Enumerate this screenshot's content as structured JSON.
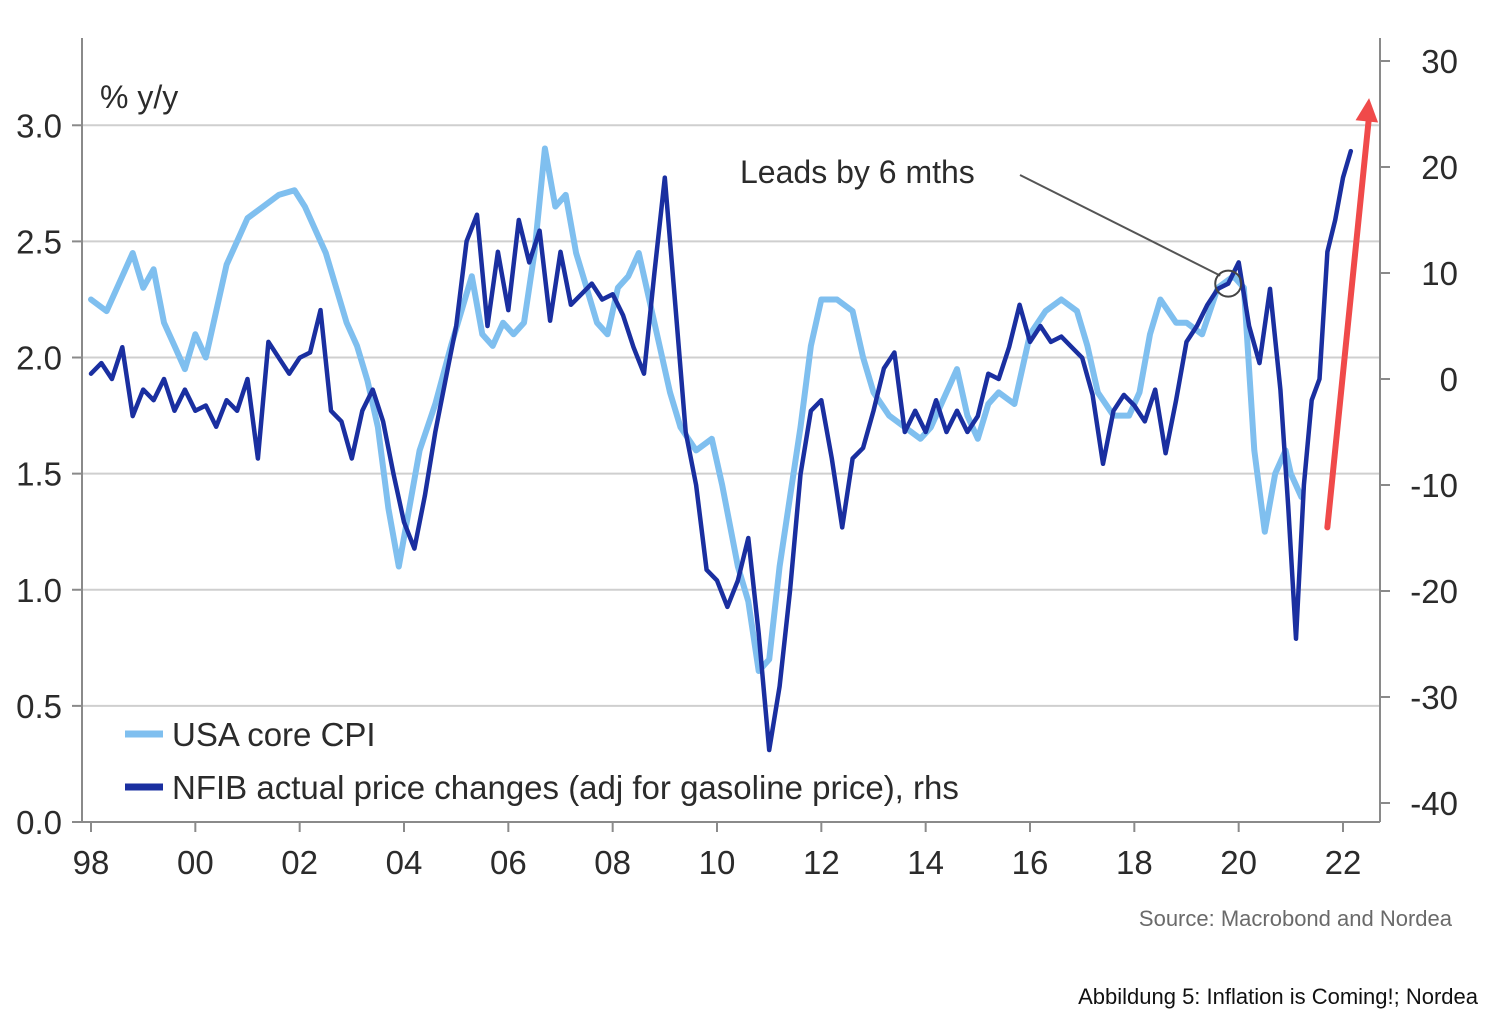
{
  "chart_data": {
    "type": "line",
    "ylabel": "% y/y",
    "x_ticks": [
      "98",
      "00",
      "02",
      "04",
      "06",
      "08",
      "10",
      "12",
      "14",
      "16",
      "18",
      "20",
      "22"
    ],
    "xlim": [
      1998,
      2022.5
    ],
    "y_left": {
      "ticks": [
        "0.0",
        "0.5",
        "1.0",
        "1.5",
        "2.0",
        "2.5",
        "3.0"
      ],
      "ylim": [
        0,
        3.3
      ]
    },
    "y_right": {
      "ticks": [
        "-40",
        "-30",
        "-20",
        "-10",
        "0",
        "10",
        "20",
        "30"
      ],
      "ylim": [
        -44,
        31
      ]
    },
    "grid": true,
    "legend_position": "bottom-left",
    "series": [
      {
        "name": "USA core CPI",
        "axis": "left",
        "color": "#7fbfef",
        "points": [
          [
            1998.0,
            2.25
          ],
          [
            1998.3,
            2.2
          ],
          [
            1998.6,
            2.35
          ],
          [
            1998.8,
            2.45
          ],
          [
            1999.0,
            2.3
          ],
          [
            1999.2,
            2.38
          ],
          [
            1999.4,
            2.15
          ],
          [
            1999.6,
            2.05
          ],
          [
            1999.8,
            1.95
          ],
          [
            2000.0,
            2.1
          ],
          [
            2000.2,
            2.0
          ],
          [
            2000.4,
            2.2
          ],
          [
            2000.6,
            2.4
          ],
          [
            2000.8,
            2.5
          ],
          [
            2001.0,
            2.6
          ],
          [
            2001.3,
            2.65
          ],
          [
            2001.6,
            2.7
          ],
          [
            2001.9,
            2.72
          ],
          [
            2002.1,
            2.65
          ],
          [
            2002.3,
            2.55
          ],
          [
            2002.5,
            2.45
          ],
          [
            2002.7,
            2.3
          ],
          [
            2002.9,
            2.15
          ],
          [
            2003.1,
            2.05
          ],
          [
            2003.3,
            1.9
          ],
          [
            2003.5,
            1.7
          ],
          [
            2003.7,
            1.35
          ],
          [
            2003.9,
            1.1
          ],
          [
            2004.1,
            1.35
          ],
          [
            2004.3,
            1.6
          ],
          [
            2004.6,
            1.8
          ],
          [
            2004.9,
            2.05
          ],
          [
            2005.1,
            2.2
          ],
          [
            2005.3,
            2.35
          ],
          [
            2005.5,
            2.1
          ],
          [
            2005.7,
            2.05
          ],
          [
            2005.9,
            2.15
          ],
          [
            2006.1,
            2.1
          ],
          [
            2006.3,
            2.15
          ],
          [
            2006.5,
            2.45
          ],
          [
            2006.7,
            2.9
          ],
          [
            2006.9,
            2.65
          ],
          [
            2007.1,
            2.7
          ],
          [
            2007.3,
            2.45
          ],
          [
            2007.5,
            2.3
          ],
          [
            2007.7,
            2.15
          ],
          [
            2007.9,
            2.1
          ],
          [
            2008.1,
            2.3
          ],
          [
            2008.3,
            2.35
          ],
          [
            2008.5,
            2.45
          ],
          [
            2008.7,
            2.25
          ],
          [
            2008.9,
            2.05
          ],
          [
            2009.1,
            1.85
          ],
          [
            2009.3,
            1.7
          ],
          [
            2009.6,
            1.6
          ],
          [
            2009.9,
            1.65
          ],
          [
            2010.1,
            1.45
          ],
          [
            2010.4,
            1.1
          ],
          [
            2010.6,
            0.95
          ],
          [
            2010.8,
            0.65
          ],
          [
            2011.0,
            0.7
          ],
          [
            2011.2,
            1.1
          ],
          [
            2011.4,
            1.4
          ],
          [
            2011.6,
            1.7
          ],
          [
            2011.8,
            2.05
          ],
          [
            2012.0,
            2.25
          ],
          [
            2012.3,
            2.25
          ],
          [
            2012.6,
            2.2
          ],
          [
            2012.8,
            2.0
          ],
          [
            2013.0,
            1.85
          ],
          [
            2013.3,
            1.75
          ],
          [
            2013.6,
            1.7
          ],
          [
            2013.9,
            1.65
          ],
          [
            2014.1,
            1.7
          ],
          [
            2014.3,
            1.8
          ],
          [
            2014.6,
            1.95
          ],
          [
            2014.8,
            1.75
          ],
          [
            2015.0,
            1.65
          ],
          [
            2015.2,
            1.8
          ],
          [
            2015.4,
            1.85
          ],
          [
            2015.7,
            1.8
          ],
          [
            2016.0,
            2.1
          ],
          [
            2016.3,
            2.2
          ],
          [
            2016.6,
            2.25
          ],
          [
            2016.9,
            2.2
          ],
          [
            2017.1,
            2.05
          ],
          [
            2017.3,
            1.85
          ],
          [
            2017.6,
            1.75
          ],
          [
            2017.9,
            1.75
          ],
          [
            2018.1,
            1.85
          ],
          [
            2018.3,
            2.1
          ],
          [
            2018.5,
            2.25
          ],
          [
            2018.8,
            2.15
          ],
          [
            2019.0,
            2.15
          ],
          [
            2019.3,
            2.1
          ],
          [
            2019.6,
            2.3
          ],
          [
            2019.9,
            2.35
          ],
          [
            2020.1,
            2.3
          ],
          [
            2020.3,
            1.6
          ],
          [
            2020.5,
            1.25
          ],
          [
            2020.7,
            1.5
          ],
          [
            2020.9,
            1.6
          ],
          [
            2021.0,
            1.5
          ],
          [
            2021.2,
            1.4
          ]
        ]
      },
      {
        "name": "NFIB actual price changes (adj for gasoline price), rhs",
        "axis": "right",
        "color": "#1a2fa0",
        "points": [
          [
            1998.0,
            0.5
          ],
          [
            1998.2,
            1.5
          ],
          [
            1998.4,
            0
          ],
          [
            1998.6,
            3.0
          ],
          [
            1998.8,
            -3.5
          ],
          [
            1999.0,
            -1.0
          ],
          [
            1999.2,
            -2.0
          ],
          [
            1999.4,
            0
          ],
          [
            1999.6,
            -3.0
          ],
          [
            1999.8,
            -1.0
          ],
          [
            2000.0,
            -3.0
          ],
          [
            2000.2,
            -2.5
          ],
          [
            2000.4,
            -4.5
          ],
          [
            2000.6,
            -2.0
          ],
          [
            2000.8,
            -3.0
          ],
          [
            2001.0,
            0
          ],
          [
            2001.2,
            -7.5
          ],
          [
            2001.4,
            3.5
          ],
          [
            2001.6,
            2.0
          ],
          [
            2001.8,
            0.5
          ],
          [
            2002.0,
            2.0
          ],
          [
            2002.2,
            2.5
          ],
          [
            2002.4,
            6.5
          ],
          [
            2002.6,
            -3.0
          ],
          [
            2002.8,
            -4.0
          ],
          [
            2003.0,
            -7.5
          ],
          [
            2003.2,
            -3.0
          ],
          [
            2003.4,
            -1.0
          ],
          [
            2003.6,
            -4.0
          ],
          [
            2003.8,
            -9.0
          ],
          [
            2004.0,
            -13.5
          ],
          [
            2004.2,
            -16.0
          ],
          [
            2004.4,
            -11.0
          ],
          [
            2004.6,
            -5.0
          ],
          [
            2004.8,
            0
          ],
          [
            2005.0,
            5.0
          ],
          [
            2005.2,
            13.0
          ],
          [
            2005.4,
            15.5
          ],
          [
            2005.6,
            5.0
          ],
          [
            2005.8,
            12.0
          ],
          [
            2006.0,
            6.5
          ],
          [
            2006.2,
            15.0
          ],
          [
            2006.4,
            11.0
          ],
          [
            2006.6,
            14.0
          ],
          [
            2006.8,
            5.5
          ],
          [
            2007.0,
            12.0
          ],
          [
            2007.2,
            7.0
          ],
          [
            2007.4,
            8.0
          ],
          [
            2007.6,
            9.0
          ],
          [
            2007.8,
            7.5
          ],
          [
            2008.0,
            8.0
          ],
          [
            2008.2,
            6.0
          ],
          [
            2008.4,
            3.0
          ],
          [
            2008.6,
            0.5
          ],
          [
            2008.8,
            10.0
          ],
          [
            2009.0,
            19.0
          ],
          [
            2009.2,
            7.0
          ],
          [
            2009.4,
            -5.0
          ],
          [
            2009.6,
            -10.0
          ],
          [
            2009.8,
            -18.0
          ],
          [
            2010.0,
            -19.0
          ],
          [
            2010.2,
            -21.5
          ],
          [
            2010.4,
            -19.0
          ],
          [
            2010.6,
            -15.0
          ],
          [
            2010.8,
            -24.0
          ],
          [
            2011.0,
            -35.0
          ],
          [
            2011.2,
            -29.0
          ],
          [
            2011.4,
            -20.0
          ],
          [
            2011.6,
            -9.0
          ],
          [
            2011.8,
            -3.0
          ],
          [
            2012.0,
            -2.0
          ],
          [
            2012.2,
            -7.5
          ],
          [
            2012.4,
            -14.0
          ],
          [
            2012.6,
            -7.5
          ],
          [
            2012.8,
            -6.5
          ],
          [
            2013.0,
            -3.0
          ],
          [
            2013.2,
            1.0
          ],
          [
            2013.4,
            2.5
          ],
          [
            2013.6,
            -5.0
          ],
          [
            2013.8,
            -3.0
          ],
          [
            2014.0,
            -5.0
          ],
          [
            2014.2,
            -2.0
          ],
          [
            2014.4,
            -5.0
          ],
          [
            2014.6,
            -3.0
          ],
          [
            2014.8,
            -5.0
          ],
          [
            2015.0,
            -3.5
          ],
          [
            2015.2,
            0.5
          ],
          [
            2015.4,
            0
          ],
          [
            2015.6,
            3.0
          ],
          [
            2015.8,
            7.0
          ],
          [
            2016.0,
            3.5
          ],
          [
            2016.2,
            5.0
          ],
          [
            2016.4,
            3.5
          ],
          [
            2016.6,
            4.0
          ],
          [
            2016.8,
            3.0
          ],
          [
            2017.0,
            2.0
          ],
          [
            2017.2,
            -1.5
          ],
          [
            2017.4,
            -8.0
          ],
          [
            2017.6,
            -3.0
          ],
          [
            2017.8,
            -1.5
          ],
          [
            2018.0,
            -2.5
          ],
          [
            2018.2,
            -4.0
          ],
          [
            2018.4,
            -1.0
          ],
          [
            2018.6,
            -7.0
          ],
          [
            2018.8,
            -2.0
          ],
          [
            2019.0,
            3.5
          ],
          [
            2019.2,
            5.0
          ],
          [
            2019.4,
            7.0
          ],
          [
            2019.6,
            8.5
          ],
          [
            2019.8,
            9.0
          ],
          [
            2020.0,
            11.0
          ],
          [
            2020.2,
            5.0
          ],
          [
            2020.4,
            1.5
          ],
          [
            2020.6,
            8.5
          ],
          [
            2020.8,
            -1.0
          ],
          [
            2020.95,
            -12.0
          ],
          [
            2021.1,
            -24.5
          ],
          [
            2021.25,
            -10.0
          ],
          [
            2021.4,
            -2.0
          ],
          [
            2021.55,
            0
          ],
          [
            2021.7,
            12.0
          ],
          [
            2021.85,
            15.0
          ],
          [
            2022.0,
            19.0
          ],
          [
            2022.15,
            21.5
          ]
        ]
      }
    ],
    "annotations": [
      {
        "text": "Leads by 6 mths",
        "target": [
          2019.8,
          9.0
        ]
      }
    ],
    "arrow": {
      "color": "#f04a4a",
      "from": [
        2021.7,
        -14.0
      ],
      "to": [
        2022.5,
        26.5
      ]
    }
  },
  "legend": {
    "items": [
      {
        "label": "USA core CPI",
        "color": "#7fbfef"
      },
      {
        "label": "NFIB actual price changes (adj for gasoline price), rhs",
        "color": "#1a2fa0"
      }
    ]
  },
  "source": "Source: Macrobond and Nordea",
  "caption": "Abbildung 5: Inflation is Coming!; Nordea"
}
